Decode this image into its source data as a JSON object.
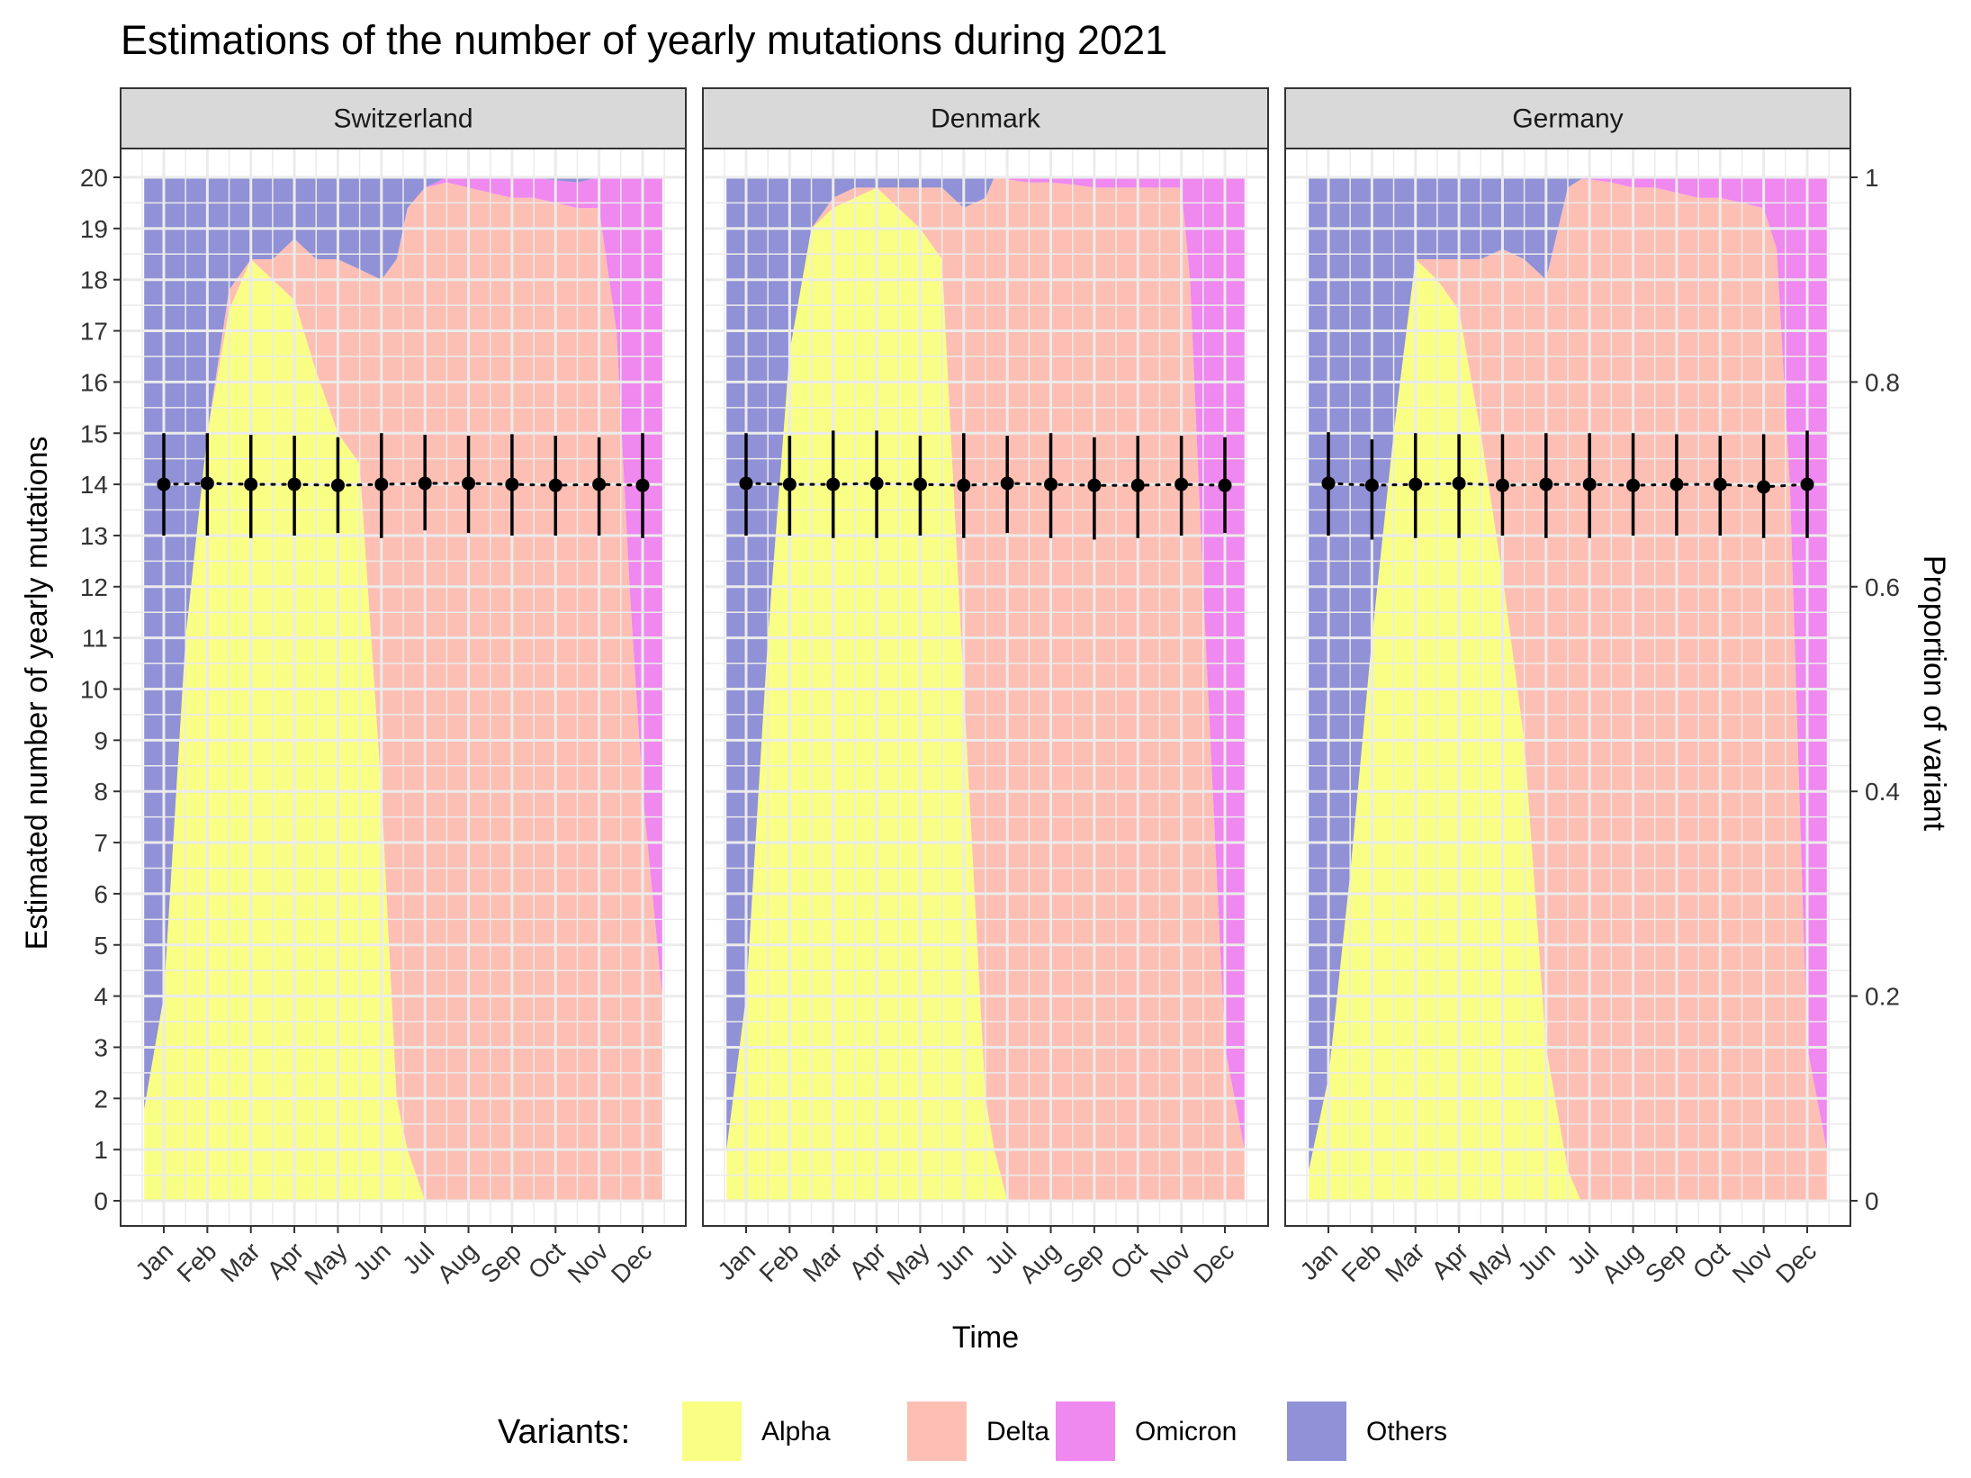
{
  "chart_data": {
    "type": "area",
    "title": "Estimations of the number of yearly mutations during 2021",
    "xlabel": "Time",
    "ylabel": "Estimated number of yearly mutations",
    "ylabel_right": "Proportion of variant",
    "ylim": [
      0,
      20
    ],
    "ylim_right": [
      0,
      1
    ],
    "y_ticks": [
      "0",
      "1",
      "2",
      "3",
      "4",
      "5",
      "6",
      "7",
      "8",
      "9",
      "10",
      "11",
      "12",
      "13",
      "14",
      "15",
      "16",
      "17",
      "18",
      "19",
      "20"
    ],
    "y_ticks_right": [
      "0",
      "0.2",
      "0.4",
      "0.6",
      "0.8",
      "1"
    ],
    "categories": [
      "Jan",
      "Feb",
      "Mar",
      "Apr",
      "May",
      "Jun",
      "Jul",
      "Aug",
      "Sep",
      "Oct",
      "Nov",
      "Dec"
    ],
    "legend": {
      "title": "Variants:",
      "position": "bottom",
      "entries": [
        {
          "name": "Alpha",
          "color": "#f9fe85"
        },
        {
          "name": "Delta",
          "color": "#fdbfb4"
        },
        {
          "name": "Omicron",
          "color": "#ef88ef"
        },
        {
          "name": "Others",
          "color": "#9091d6"
        }
      ]
    },
    "grid": true,
    "facets": [
      {
        "name": "Switzerland",
        "area_x": [
          0.55,
          1,
          1.5,
          2,
          2.5,
          3,
          3.5,
          4,
          4.5,
          5,
          5.5,
          6,
          6.35,
          6.6,
          7,
          7.5,
          8,
          8.5,
          9,
          9.5,
          10,
          10.5,
          11,
          11.4,
          11.7,
          12,
          12.45
        ],
        "alpha": [
          0.09,
          0.2,
          0.55,
          0.75,
          0.87,
          0.92,
          0.9,
          0.88,
          0.81,
          0.75,
          0.72,
          0.4,
          0.1,
          0.05,
          0,
          0,
          0,
          0,
          0,
          0,
          0,
          0,
          0,
          0,
          0,
          0,
          0
        ],
        "delta": [
          0,
          0,
          0,
          0,
          0.02,
          0,
          0.02,
          0.06,
          0.11,
          0.17,
          0.19,
          0.5,
          0.82,
          0.92,
          0.99,
          0.995,
          0.99,
          0.985,
          0.98,
          0.98,
          0.975,
          0.97,
          0.97,
          0.85,
          0.6,
          0.4,
          0.2
        ],
        "omicron": [
          0,
          0,
          0,
          0,
          0,
          0,
          0,
          0,
          0,
          0,
          0,
          0,
          0,
          0,
          0,
          0.005,
          0.01,
          0.015,
          0.02,
          0.02,
          0.022,
          0.025,
          0.03,
          0.15,
          0.4,
          0.6,
          0.8
        ],
        "points": [
          14.0,
          14.02,
          14.0,
          14.0,
          13.98,
          14.0,
          14.02,
          14.02,
          14.0,
          13.98,
          14.0,
          13.98
        ],
        "err_low": [
          13.0,
          13.0,
          12.95,
          13.0,
          13.05,
          12.95,
          13.1,
          13.05,
          13.0,
          13.0,
          13.0,
          12.95
        ],
        "err_high": [
          15.0,
          15.0,
          14.97,
          14.95,
          14.92,
          15.0,
          14.97,
          14.95,
          14.98,
          14.95,
          14.92,
          15.0
        ]
      },
      {
        "name": "Denmark",
        "area_x": [
          0.55,
          1,
          1.5,
          2,
          2.5,
          3,
          3.5,
          4,
          4.5,
          5,
          5.5,
          6,
          6.5,
          6.7,
          7,
          7.5,
          8,
          8.5,
          9,
          9.5,
          10,
          10.5,
          11,
          11.2,
          11.5,
          12,
          12.45
        ],
        "alpha": [
          0.05,
          0.2,
          0.55,
          0.83,
          0.95,
          0.97,
          0.98,
          0.99,
          0.97,
          0.95,
          0.92,
          0.5,
          0.1,
          0.05,
          0,
          0,
          0,
          0,
          0,
          0,
          0,
          0,
          0,
          0,
          0,
          0,
          0
        ],
        "delta": [
          0,
          0,
          0,
          0,
          0,
          0.01,
          0.01,
          0,
          0.02,
          0.04,
          0.07,
          0.47,
          0.88,
          0.95,
          0.998,
          0.995,
          0.995,
          0.993,
          0.99,
          0.99,
          0.99,
          0.99,
          0.99,
          0.9,
          0.6,
          0.15,
          0.05
        ],
        "omicron": [
          0,
          0,
          0,
          0,
          0,
          0,
          0,
          0,
          0,
          0,
          0,
          0,
          0,
          0,
          0.002,
          0.005,
          0.005,
          0.007,
          0.01,
          0.01,
          0.01,
          0.01,
          0.01,
          0.1,
          0.4,
          0.85,
          0.95
        ],
        "points": [
          14.02,
          14.0,
          14.0,
          14.02,
          14.0,
          13.98,
          14.02,
          14.0,
          13.98,
          13.98,
          14.0,
          13.98
        ],
        "err_low": [
          13.0,
          13.0,
          12.95,
          12.95,
          13.0,
          12.95,
          13.05,
          12.95,
          12.92,
          12.95,
          13.0,
          13.05
        ],
        "err_high": [
          15.0,
          14.95,
          15.05,
          15.05,
          14.95,
          15.0,
          14.95,
          15.0,
          14.92,
          14.95,
          14.95,
          14.92
        ]
      },
      {
        "name": "Germany",
        "area_x": [
          0.55,
          1,
          1.5,
          2,
          2.5,
          3,
          3.5,
          4,
          4.5,
          5,
          5.5,
          6,
          6.5,
          6.8,
          7,
          7.5,
          8,
          8.5,
          9,
          9.5,
          10,
          10.5,
          11,
          11.3,
          11.6,
          12,
          12.45
        ],
        "alpha": [
          0.03,
          0.12,
          0.32,
          0.55,
          0.75,
          0.92,
          0.9,
          0.87,
          0.75,
          0.61,
          0.45,
          0.15,
          0.03,
          0,
          0,
          0,
          0,
          0,
          0,
          0,
          0,
          0,
          0,
          0,
          0,
          0,
          0
        ],
        "delta": [
          0,
          0,
          0,
          0,
          0,
          0,
          0.02,
          0.05,
          0.17,
          0.32,
          0.47,
          0.75,
          0.96,
          0.998,
          0.998,
          0.995,
          0.99,
          0.99,
          0.985,
          0.98,
          0.98,
          0.975,
          0.97,
          0.93,
          0.7,
          0.15,
          0.05
        ],
        "omicron": [
          0,
          0,
          0,
          0,
          0,
          0,
          0,
          0,
          0,
          0,
          0,
          0,
          0,
          0,
          0.002,
          0.005,
          0.01,
          0.01,
          0.015,
          0.02,
          0.02,
          0.025,
          0.03,
          0.07,
          0.3,
          0.85,
          0.95
        ],
        "points": [
          14.02,
          13.98,
          14.0,
          14.02,
          13.98,
          14.0,
          14.0,
          13.98,
          14.0,
          14.0,
          13.95,
          14.0
        ],
        "err_low": [
          13.0,
          12.92,
          12.95,
          12.95,
          13.0,
          12.95,
          12.95,
          13.0,
          13.0,
          13.0,
          12.95,
          12.95
        ],
        "err_high": [
          15.02,
          14.88,
          15.0,
          14.98,
          14.98,
          15.0,
          15.0,
          15.0,
          14.98,
          14.95,
          14.98,
          15.05
        ]
      }
    ]
  }
}
